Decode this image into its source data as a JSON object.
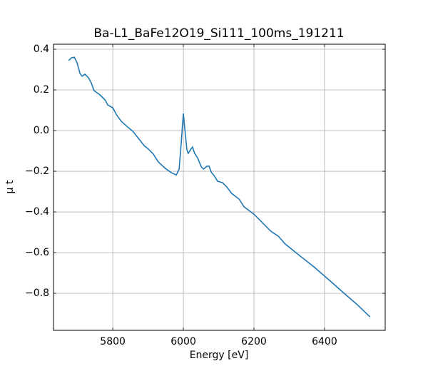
{
  "chart_data": {
    "type": "line",
    "title": "Ba-L1_BaFe12O19_Si111_100ms_191211",
    "x_label": "Energy [eV]",
    "y_label": "μ t",
    "x": [
      5675,
      5683,
      5691,
      5699,
      5707,
      5713,
      5721,
      5731,
      5739,
      5747,
      5764,
      5778,
      5786,
      5800,
      5812,
      5824,
      5840,
      5857,
      5873,
      5889,
      5901,
      5915,
      5929,
      5949,
      5966,
      5980,
      5988,
      5994,
      6000,
      6004,
      6010,
      6014,
      6020,
      6026,
      6032,
      6040,
      6051,
      6057,
      6067,
      6073,
      6079,
      6087,
      6097,
      6111,
      6123,
      6137,
      6158,
      6172,
      6200,
      6220,
      6248,
      6269,
      6289,
      6329,
      6370,
      6410,
      6451,
      6491,
      6529
    ],
    "series": [
      {
        "name": "μ t",
        "color": "#1f77b4",
        "values": [
          0.344,
          0.358,
          0.361,
          0.333,
          0.281,
          0.267,
          0.277,
          0.26,
          0.235,
          0.196,
          0.175,
          0.151,
          0.126,
          0.112,
          0.074,
          0.046,
          0.021,
          -0.004,
          -0.039,
          -0.074,
          -0.091,
          -0.116,
          -0.154,
          -0.186,
          -0.207,
          -0.218,
          -0.189,
          -0.06,
          0.084,
          0.011,
          -0.095,
          -0.112,
          -0.095,
          -0.081,
          -0.112,
          -0.133,
          -0.179,
          -0.189,
          -0.175,
          -0.175,
          -0.204,
          -0.221,
          -0.249,
          -0.256,
          -0.277,
          -0.309,
          -0.337,
          -0.375,
          -0.411,
          -0.446,
          -0.495,
          -0.519,
          -0.558,
          -0.614,
          -0.67,
          -0.73,
          -0.793,
          -0.853,
          -0.916
        ]
      }
    ],
    "xlim": [
      5632,
      6572
    ],
    "xticks": [
      5800,
      6000,
      6200,
      6400
    ],
    "ylim": [
      -0.982,
      0.4246
    ],
    "yticks": [
      {
        "value": -0.8,
        "label": "−0.8"
      },
      {
        "value": -0.6,
        "label": "−0.6"
      },
      {
        "value": -0.4,
        "label": "−0.4"
      },
      {
        "value": -0.2,
        "label": "−0.2"
      },
      {
        "value": 0,
        "label": "0.0"
      },
      0.2,
      0.4
    ],
    "grid": true
  }
}
